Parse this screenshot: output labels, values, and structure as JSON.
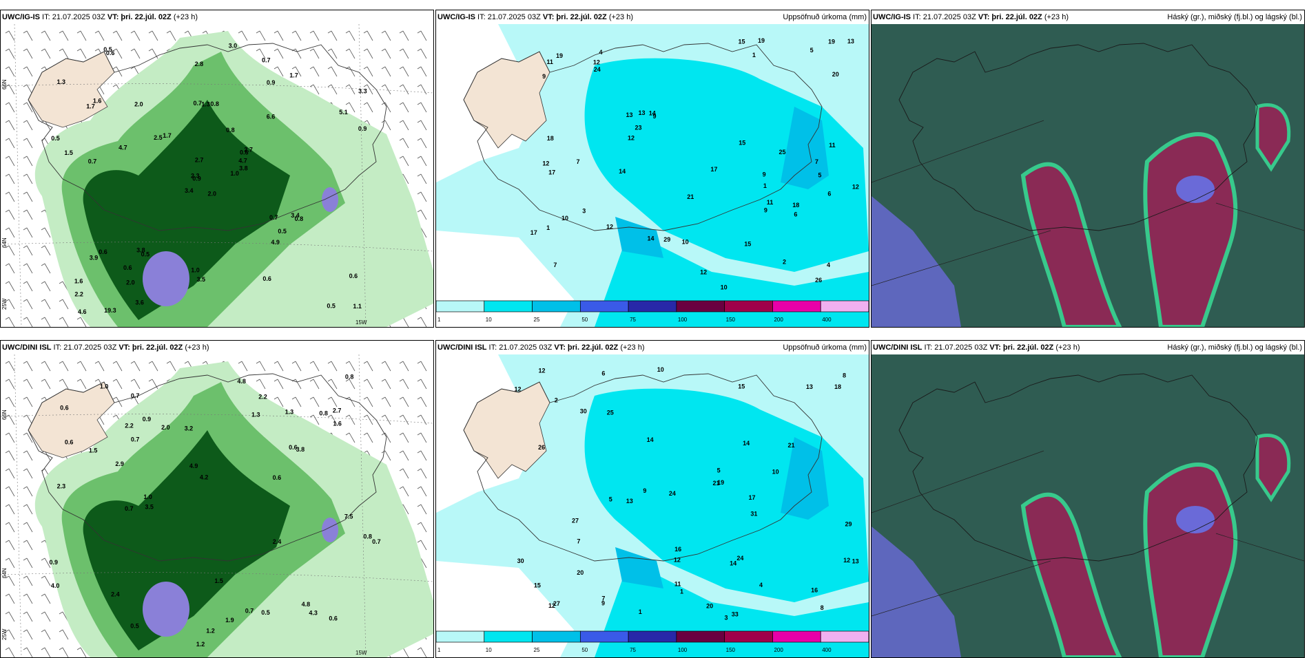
{
  "panels": [
    {
      "id": "r1c1",
      "title_model": "UWC/IG-IS",
      "title_rest": " IT: 21.07.2025 03Z ",
      "vt_label": "VT: þri. 22.júl. 02Z",
      "lead": " (+23 h)",
      "right_title": "",
      "lat_labels": [
        "66N",
        "64N",
        "25W"
      ],
      "lon_labels": [
        "15W"
      ],
      "values": [
        "2.0",
        "1.7",
        "0.9",
        "1.6",
        "0.6",
        "0.5",
        "0.7",
        "0.8",
        "0.9",
        "1.0",
        "0.6",
        "1.1",
        "0.7",
        "3.3",
        "3.4",
        "6.6",
        "19.3",
        "0.7",
        "0.8",
        "0.6",
        "1.7",
        "2.2",
        "2.0",
        "1.3",
        "2.7",
        "0.8",
        "1.6",
        "2.8",
        "1.5",
        "0.7",
        "0.9",
        "2.3",
        "1.0",
        "2.7",
        "2.0",
        "1.7",
        "3.8",
        "0.5",
        "0.6",
        "3.4",
        "3.0",
        "2.5",
        "4.7",
        "4.9",
        "3.6",
        "0.5",
        "4.7",
        "4.6",
        "3.5",
        "3.8",
        "3.9",
        "5.1",
        "1.3",
        "0.5",
        "0.6",
        "0.6",
        "0.5"
      ]
    },
    {
      "id": "r1c2",
      "title_model": "UWC/IG-IS",
      "title_rest": " IT: 21.07.2025 03Z ",
      "vt_label": "VT: þri. 22.júl. 02Z",
      "lead": " (+23 h)",
      "right_title": "Uppsöfnuð úrkoma (mm)",
      "values": [
        "1",
        "5",
        "7",
        "4",
        "9",
        "2",
        "1",
        "1",
        "13",
        "10",
        "9",
        "12",
        "11",
        "4",
        "14",
        "11",
        "21",
        "17",
        "14",
        "3",
        "13",
        "5",
        "12",
        "6",
        "15",
        "12",
        "11",
        "17",
        "24",
        "25",
        "12",
        "15",
        "23",
        "14",
        "7",
        "6",
        "9",
        "7",
        "10",
        "10",
        "20",
        "19",
        "26",
        "29",
        "18",
        "12",
        "17",
        "19",
        "15",
        "18",
        "12",
        "13",
        "19",
        "9"
      ],
      "legend": [
        "1",
        "10",
        "25",
        "50",
        "75",
        "100",
        "150",
        "200",
        "400"
      ]
    },
    {
      "id": "r1c3",
      "title_model": "UWC/IG-IS",
      "title_rest": " IT: 21.07.2025 03Z ",
      "vt_label": "VT: þri. 22.júl. 02Z",
      "lead": " (+23 h)",
      "right_title": "Háský (gr.), miðský (fj.bl.) og lágský (bl.)"
    },
    {
      "id": "r2c1",
      "title_model": "UWC/DINI ISL",
      "title_rest": " IT: 21.07.2025 03Z ",
      "vt_label": "VT: þri. 22.júl. 02Z",
      "lead": " (+23 h)",
      "right_title": "",
      "lat_labels": [
        "66N",
        "64N",
        "25W"
      ],
      "lon_labels": [
        "15W"
      ],
      "values": [
        "0.6",
        "0.7",
        "0.6",
        "1.2",
        "0.8",
        "1.2",
        "2.4",
        "3.5",
        "2.7",
        "0.7",
        "0.8",
        "0.9",
        "0.6",
        "2.4",
        "2.3",
        "0.5",
        "1.0",
        "3.2",
        "0.6",
        "0.7",
        "4.3",
        "7.5",
        "4.2",
        "1.5",
        "1.3",
        "2.9",
        "1.6",
        "2.2",
        "1.0",
        "0.7",
        "0.9",
        "0.5",
        "0.8",
        "1.5",
        "0.6",
        "0.7",
        "2.0",
        "1.3",
        "4.8",
        "4.0",
        "3.8",
        "2.2",
        "4.9",
        "4.8",
        "1.9"
      ]
    },
    {
      "id": "r2c2",
      "title_model": "UWC/DINI ISL",
      "title_rest": " IT: 21.07.2025 03Z ",
      "vt_label": "VT: þri. 22.júl. 02Z",
      "lead": " (+23 h)",
      "right_title": "Uppsöfnuð úrkoma (mm)",
      "values": [
        "1",
        "3",
        "7",
        "4",
        "6",
        "2",
        "5",
        "8",
        "10",
        "14",
        "13",
        "1",
        "9",
        "12",
        "15",
        "21",
        "26",
        "9",
        "13",
        "12",
        "14",
        "8",
        "5",
        "12",
        "21",
        "27",
        "30",
        "7",
        "12",
        "31",
        "24",
        "33",
        "16",
        "18",
        "20",
        "17",
        "12",
        "15",
        "14",
        "16",
        "19",
        "10",
        "13",
        "27",
        "25",
        "24",
        "29",
        "20",
        "30",
        "11"
      ],
      "legend": [
        "1",
        "10",
        "25",
        "50",
        "75",
        "100",
        "150",
        "200",
        "400"
      ]
    },
    {
      "id": "r2c3",
      "title_model": "UWC/DINI ISL",
      "title_rest": " IT: 21.07.2025 03Z ",
      "vt_label": "VT: þri. 22.júl. 02Z",
      "lead": " (+23 h)",
      "right_title": "Háský (gr.), miðský (fj.bl.) og lágský (bl.)"
    }
  ],
  "colors": {
    "land": "#f3e4d4",
    "green_light": "#c4ecc4",
    "green_mid": "#6cc06c",
    "green_dark": "#0d5a1a",
    "purple": "#8a80d8",
    "precip_light": "#b8f8f8",
    "precip_mid": "#00e6f0",
    "precip_dark": "#00c0e8",
    "cloud_bg": "#2f5c52",
    "cloud_green": "#38c98c",
    "cloud_red": "#8a2a55",
    "cloud_blue": "#6a6ad8"
  }
}
